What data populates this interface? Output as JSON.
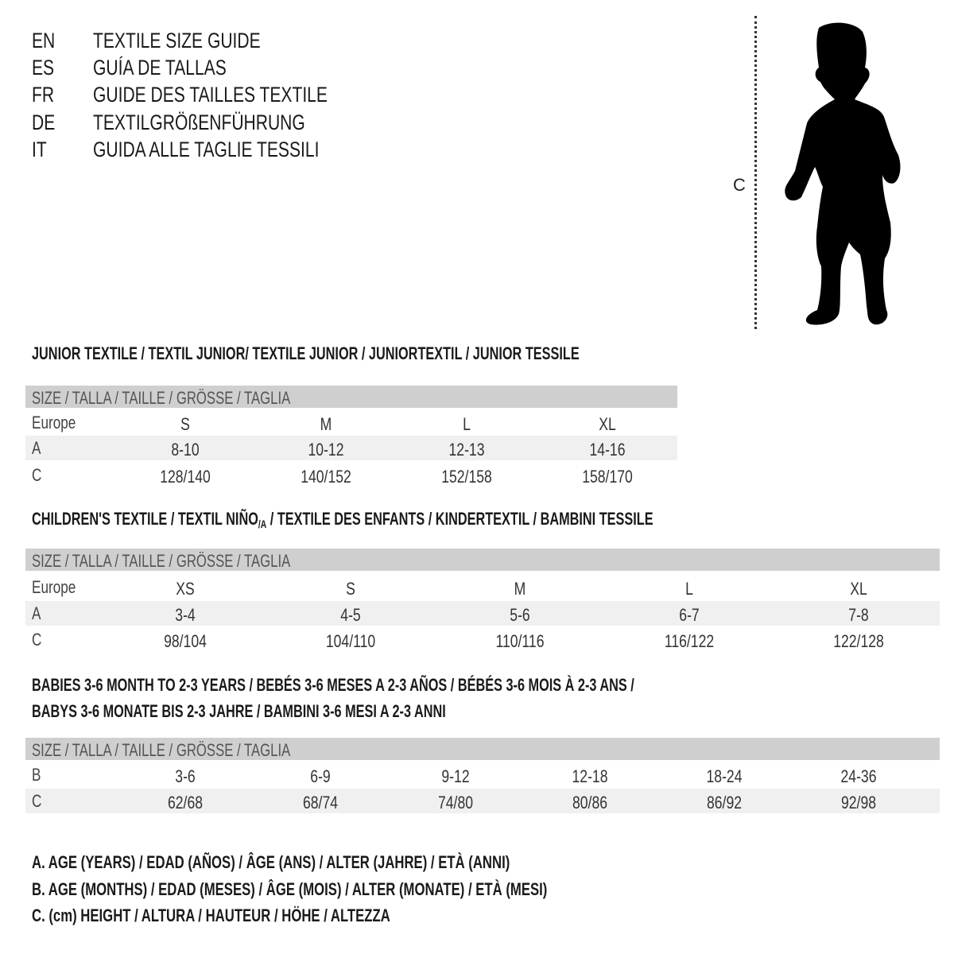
{
  "header": {
    "languages": [
      {
        "code": "EN",
        "text": "TEXTILE SIZE GUIDE"
      },
      {
        "code": "ES",
        "text": "GUÍA DE TALLAS"
      },
      {
        "code": "FR",
        "text": "GUIDE DES TAILLES TEXTILE"
      },
      {
        "code": "DE",
        "text": "TEXTILGRÖßENFÜHRUNG"
      },
      {
        "code": "IT",
        "text": "GUIDA ALLE TAGLIE TESSILI"
      }
    ]
  },
  "figure": {
    "icon": "child-silhouette-icon",
    "measure_label": "C"
  },
  "tables": [
    {
      "title_lines": [
        "JUNIOR TEXTILE / TEXTIL JUNIOR/ TEXTILE JUNIOR / JUNIORTEXTIL / JUNIOR TESSILE"
      ],
      "size_header": "SIZE / TALLA / TAILLE / GRÖSSE / TAGLIA",
      "rows": [
        {
          "label": "Europe",
          "values": [
            "S",
            "M",
            "L",
            "XL"
          ]
        },
        {
          "label": "A",
          "values": [
            "8-10",
            "10-12",
            "12-13",
            "14-16"
          ]
        },
        {
          "label": "C",
          "values": [
            "128/140",
            "140/152",
            "152/158",
            "158/170"
          ]
        }
      ]
    },
    {
      "title_lines": [
        "CHILDREN'S TEXTILE / TEXTIL NIÑO",
        "/A",
        " / TEXTILE DES ENFANTS / KINDERTEXTIL / BAMBINI TESSILE"
      ],
      "size_header": "SIZE / TALLA / TAILLE / GRÖSSE / TAGLIA",
      "rows": [
        {
          "label": "Europe",
          "values": [
            "XS",
            "S",
            "M",
            "L",
            "XL"
          ]
        },
        {
          "label": "A",
          "values": [
            "3-4",
            "4-5",
            "5-6",
            "6-7",
            "7-8"
          ]
        },
        {
          "label": "C",
          "values": [
            "98/104",
            "104/110",
            "110/116",
            "116/122",
            "122/128"
          ]
        }
      ]
    },
    {
      "title_lines": [
        "BABIES 3-6 MONTH TO 2-3 YEARS / BEBÉS 3-6 MESES A 2-3 AÑOS / BÉBÉS 3-6 MOIS À 2-3 ANS /",
        "BABYS 3-6 MONATE BIS 2-3 JAHRE / BAMBINI 3-6 MESI A 2-3 ANNI"
      ],
      "size_header": "SIZE / TALLA / TAILLE / GRÖSSE / TAGLIA",
      "rows": [
        {
          "label": "B",
          "values": [
            "3-6",
            "6-9",
            "9-12",
            "12-18",
            "18-24",
            "24-36"
          ]
        },
        {
          "label": "C",
          "values": [
            "62/68",
            "68/74",
            "74/80",
            "80/86",
            "86/92",
            "92/98"
          ]
        }
      ]
    }
  ],
  "legend": [
    "A. AGE (YEARS) / EDAD (AÑOS) / ÂGE (ANS) / ALTER (JAHRE) / ETÀ (ANNI)",
    "B. AGE (MONTHS) / EDAD (MESES) / ÂGE (MOIS) / ALTER (MONATE) / ETÀ (MESI)",
    "C. (cm) HEIGHT / ALTURA / HAUTEUR / HÖHE / ALTEZZA"
  ],
  "colors": {
    "header_bar": "#cfcfcf",
    "stripe": "#f0f0f0",
    "text": "#1a1a1a"
  }
}
